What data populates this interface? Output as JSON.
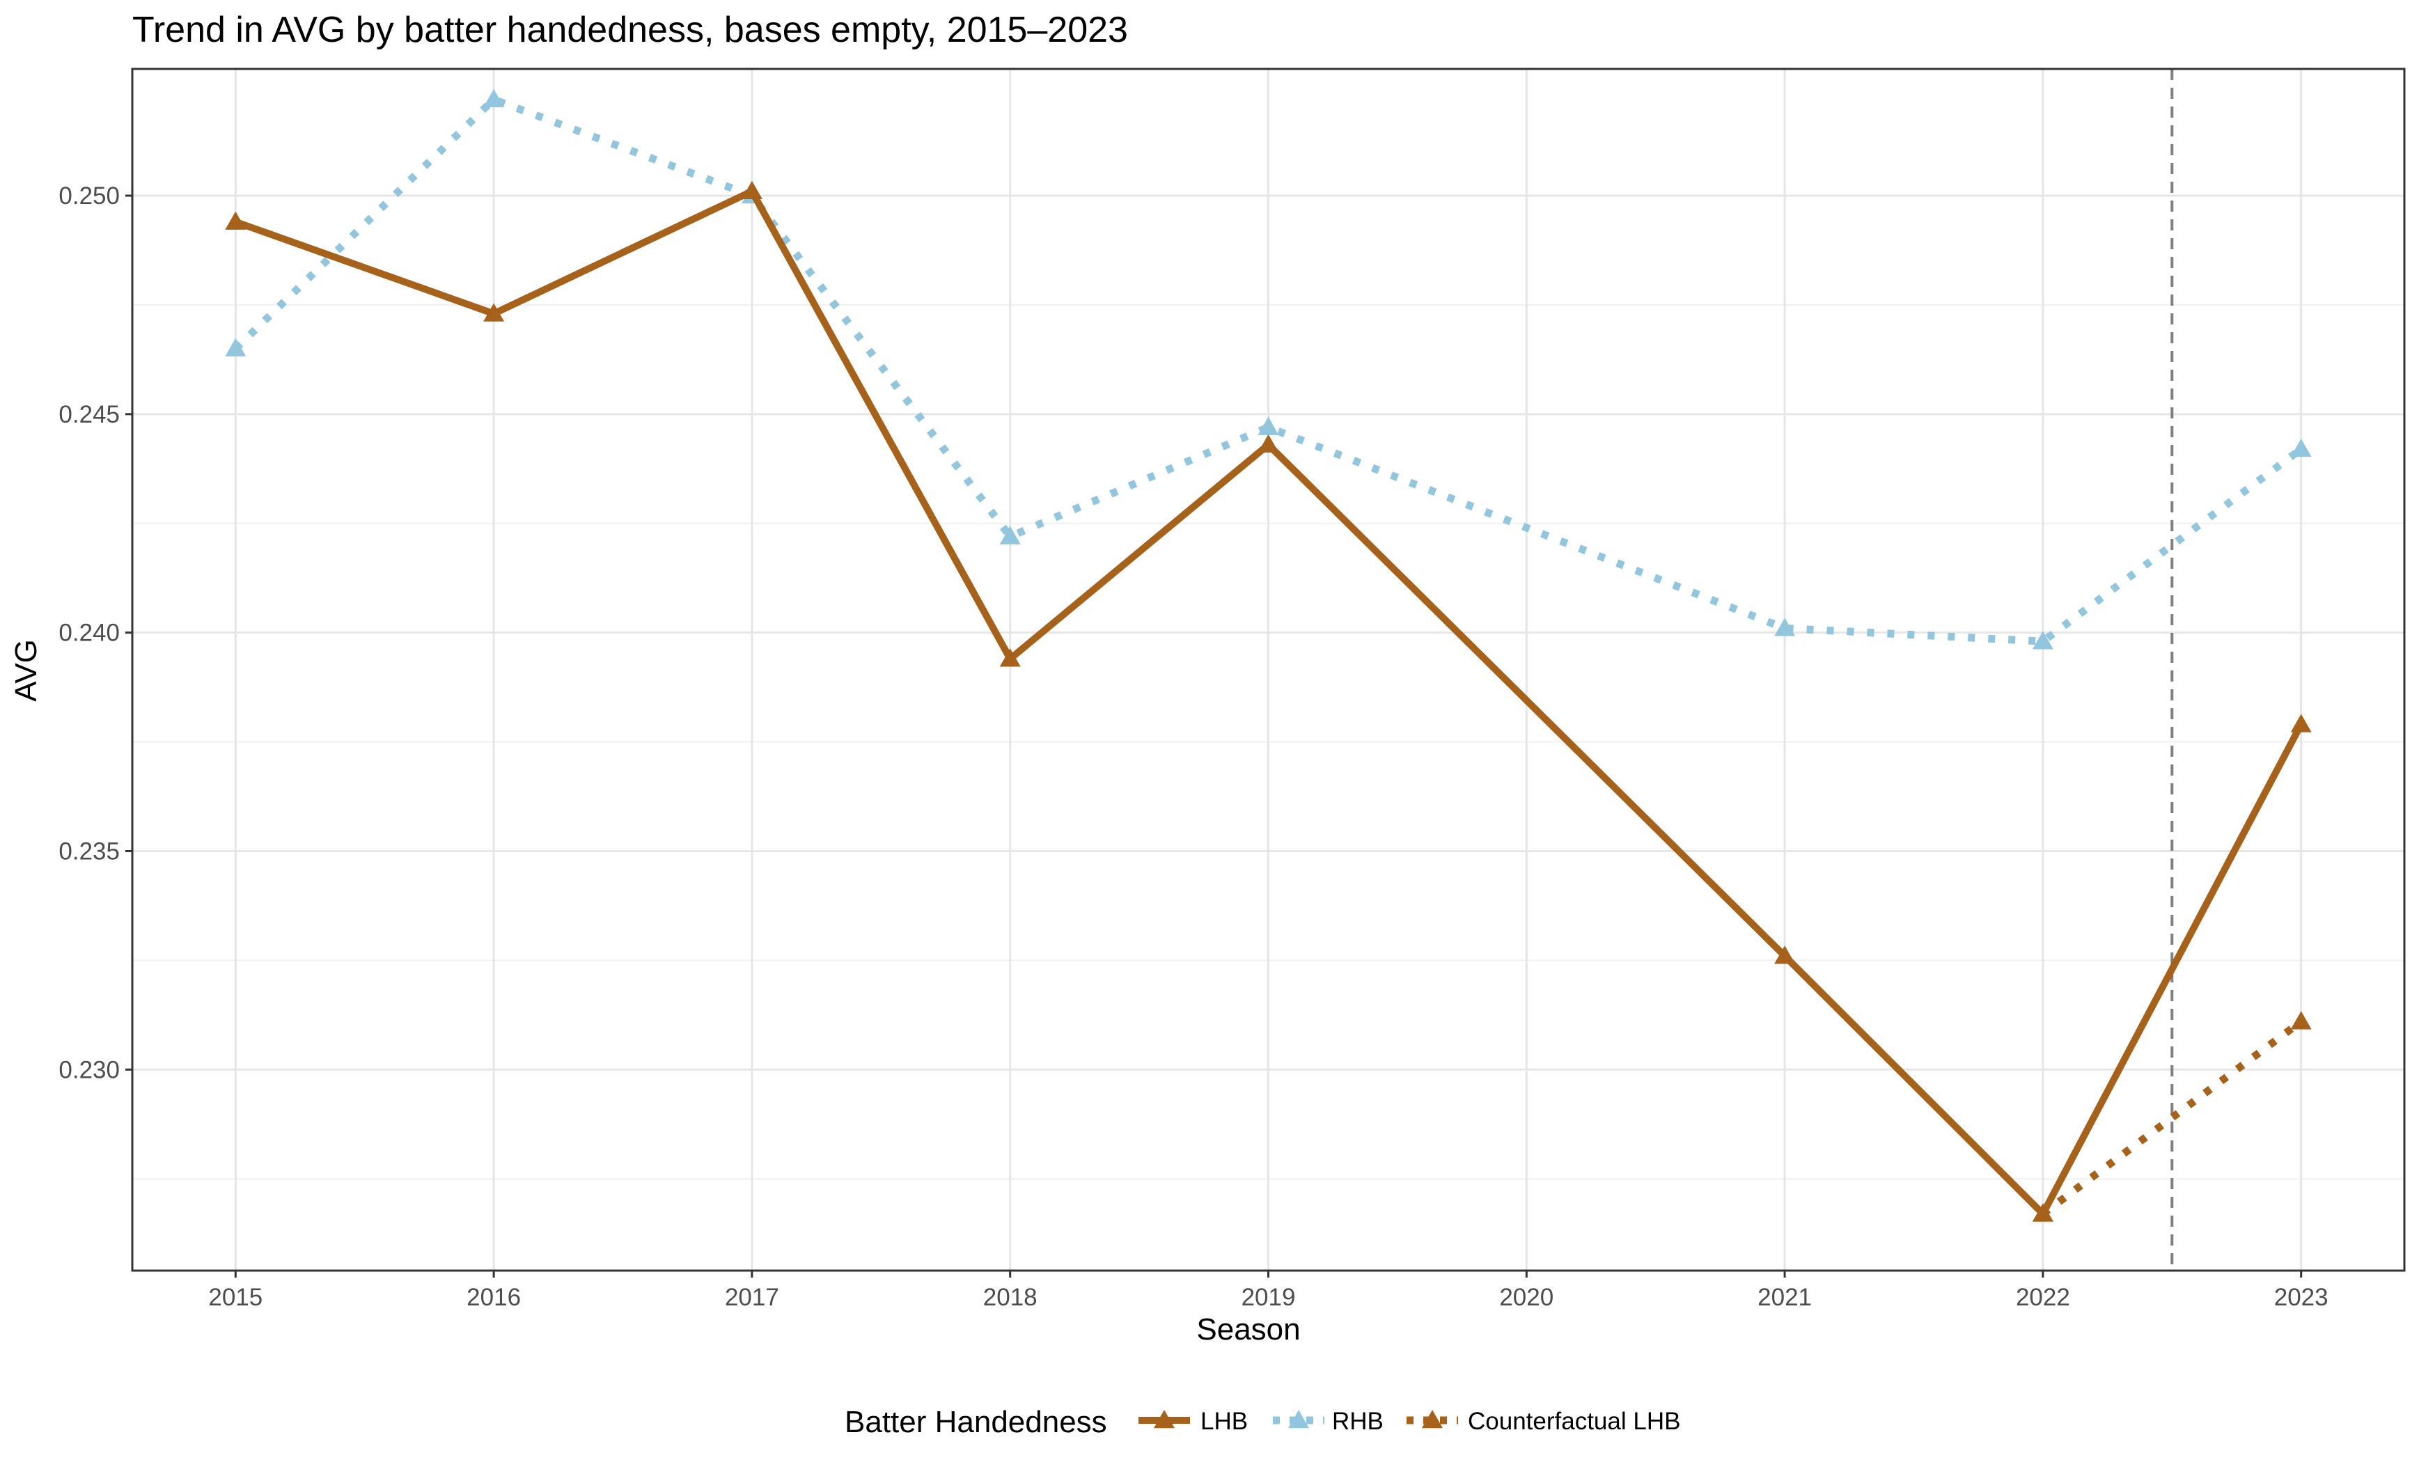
{
  "chart_data": {
    "type": "line",
    "title": "Trend in AVG by batter handedness, bases empty, 2015–2023",
    "xlabel": "Season",
    "ylabel": "AVG",
    "x": [
      2015,
      2016,
      2017,
      2018,
      2019,
      2020,
      2021,
      2022,
      2023
    ],
    "xlim": [
      2014.6,
      2023.4
    ],
    "ylim": [
      0.2254,
      0.2529
    ],
    "y_ticks": [
      0.23,
      0.235,
      0.24,
      0.245,
      0.25
    ],
    "y_tick_labels": [
      "0.230",
      "0.235",
      "0.240",
      "0.245",
      "0.250"
    ],
    "x_tick_labels": [
      "2015",
      "2016",
      "2017",
      "2018",
      "2019",
      "2020",
      "2021",
      "2022",
      "2023"
    ],
    "grid": true,
    "reference_line": {
      "x": 2022.5,
      "style": "dashed",
      "color": "#808080"
    },
    "legend": {
      "title": "Batter Handedness",
      "position": "bottom"
    },
    "series": [
      {
        "name": "LHB",
        "color": "#a6611a",
        "line_style": "solid",
        "marker": "triangle",
        "points": [
          {
            "x": 2015,
            "y": 0.2494
          },
          {
            "x": 2016,
            "y": 0.2473
          },
          {
            "x": 2017,
            "y": 0.2501
          },
          {
            "x": 2018,
            "y": 0.2394
          },
          {
            "x": 2019,
            "y": 0.2443
          },
          {
            "x": 2021,
            "y": 0.2326
          },
          {
            "x": 2022,
            "y": 0.2267
          },
          {
            "x": 2023,
            "y": 0.2379
          }
        ]
      },
      {
        "name": "RHB",
        "color": "#92c5de",
        "line_style": "dotted",
        "marker": "triangle",
        "points": [
          {
            "x": 2015,
            "y": 0.2465
          },
          {
            "x": 2016,
            "y": 0.2522
          },
          {
            "x": 2017,
            "y": 0.25
          },
          {
            "x": 2018,
            "y": 0.2422
          },
          {
            "x": 2019,
            "y": 0.2447
          },
          {
            "x": 2021,
            "y": 0.2401
          },
          {
            "x": 2022,
            "y": 0.2398
          },
          {
            "x": 2023,
            "y": 0.2442
          }
        ]
      },
      {
        "name": "Counterfactual LHB",
        "color": "#a6611a",
        "line_style": "dotted",
        "marker": "triangle",
        "points": [
          {
            "x": 2022,
            "y": 0.2267
          },
          {
            "x": 2023,
            "y": 0.2311
          }
        ]
      }
    ]
  }
}
